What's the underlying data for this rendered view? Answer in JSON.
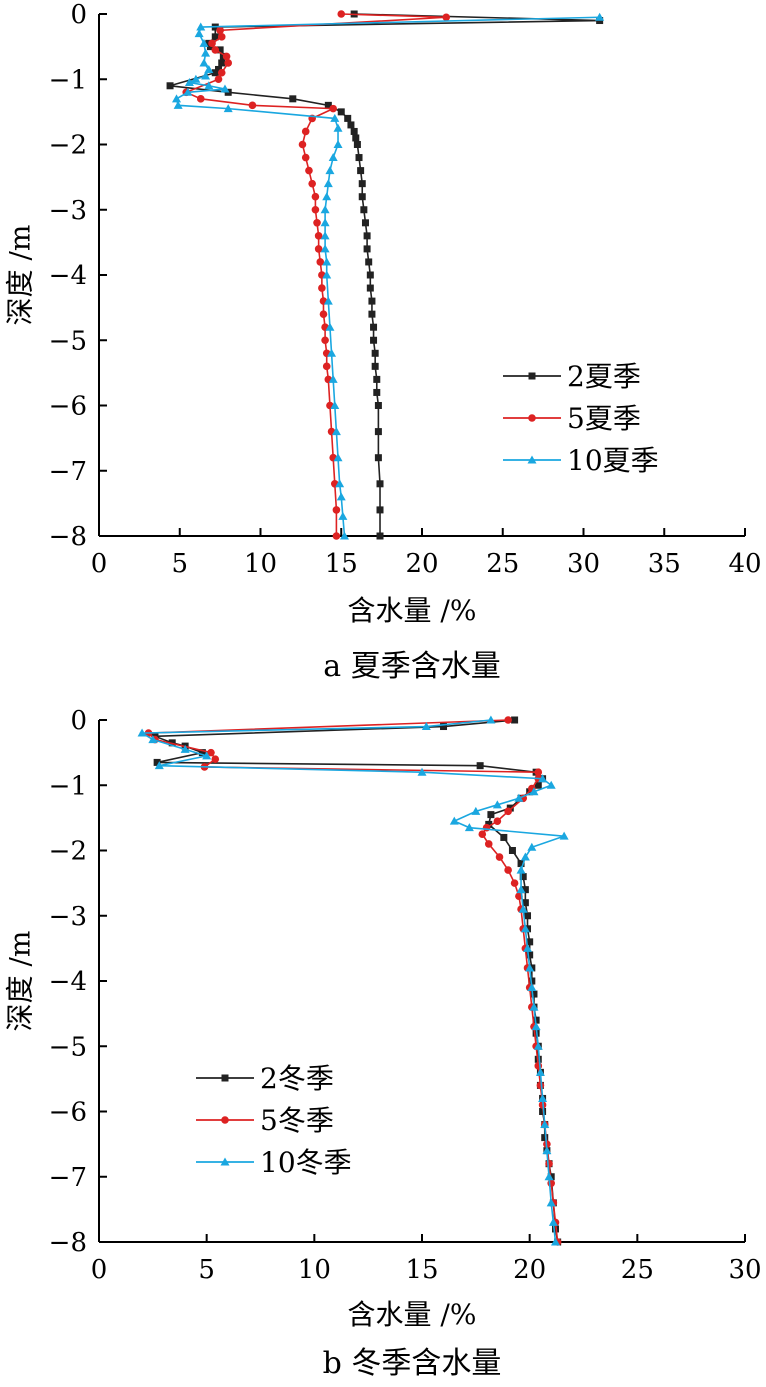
{
  "chart_data": [
    {
      "type": "line",
      "caption": "a 夏季含水量",
      "xlabel": "含水量 /%",
      "ylabel": "深度 /m",
      "xlim": [
        0,
        40
      ],
      "ylim": [
        -8,
        0
      ],
      "xticks": [
        0,
        5,
        10,
        15,
        20,
        25,
        30,
        35,
        40
      ],
      "yticks": [
        0,
        -1,
        -2,
        -3,
        -4,
        -5,
        -6,
        -7,
        -8
      ],
      "legend_position": "middle-right",
      "series": [
        {
          "name": "2夏季",
          "color": "#222222",
          "marker": "square",
          "x": [
            15.8,
            31.0,
            7.2,
            7.2,
            6.8,
            6.9,
            7.5,
            7.7,
            7.6,
            7.4,
            7.2,
            4.4,
            8.0,
            12.0,
            14.2,
            15.0,
            15.4,
            15.6,
            15.8,
            15.9,
            16.0,
            16.1,
            16.2,
            16.3,
            16.3,
            16.4,
            16.5,
            16.6,
            16.6,
            16.7,
            16.8,
            16.8,
            16.9,
            16.9,
            17.0,
            17.0,
            17.1,
            17.1,
            17.2,
            17.2,
            17.3,
            17.3,
            17.3,
            17.4,
            17.4,
            17.4
          ],
          "y": [
            0.0,
            -0.1,
            -0.2,
            -0.35,
            -0.45,
            -0.5,
            -0.55,
            -0.65,
            -0.75,
            -0.85,
            -0.9,
            -1.1,
            -1.2,
            -1.3,
            -1.4,
            -1.5,
            -1.6,
            -1.7,
            -1.8,
            -1.9,
            -2.0,
            -2.2,
            -2.4,
            -2.6,
            -2.8,
            -3.0,
            -3.2,
            -3.4,
            -3.6,
            -3.8,
            -4.0,
            -4.2,
            -4.4,
            -4.6,
            -4.8,
            -5.0,
            -5.2,
            -5.4,
            -5.6,
            -5.8,
            -6.0,
            -6.4,
            -6.8,
            -7.2,
            -7.6,
            -8.0
          ]
        },
        {
          "name": "5夏季",
          "color": "#dd2222",
          "marker": "circle",
          "x": [
            15.0,
            21.5,
            7.5,
            7.6,
            7.0,
            7.2,
            7.9,
            8.0,
            7.6,
            7.4,
            5.4,
            6.3,
            9.5,
            14.5,
            13.2,
            12.8,
            12.6,
            12.8,
            13.0,
            13.2,
            13.4,
            13.4,
            13.5,
            13.6,
            13.6,
            13.7,
            13.8,
            13.8,
            13.9,
            13.9,
            14.0,
            14.0,
            14.1,
            14.1,
            14.2,
            14.3,
            14.4,
            14.5,
            14.6,
            14.7,
            14.7
          ],
          "y": [
            0.0,
            -0.05,
            -0.25,
            -0.35,
            -0.45,
            -0.55,
            -0.65,
            -0.75,
            -0.9,
            -1.0,
            -1.2,
            -1.3,
            -1.4,
            -1.45,
            -1.6,
            -1.8,
            -2.0,
            -2.2,
            -2.4,
            -2.6,
            -2.8,
            -3.0,
            -3.2,
            -3.4,
            -3.6,
            -3.8,
            -4.0,
            -4.2,
            -4.4,
            -4.6,
            -4.8,
            -5.0,
            -5.2,
            -5.4,
            -5.6,
            -6.0,
            -6.4,
            -6.8,
            -7.2,
            -7.6,
            -8.0
          ]
        },
        {
          "name": "10夏季",
          "color": "#1aa7e0",
          "marker": "triangle",
          "x": [
            31.0,
            6.3,
            6.2,
            6.5,
            6.6,
            6.5,
            6.8,
            6.6,
            6.0,
            5.6,
            6.8,
            7.8,
            5.5,
            4.8,
            4.9,
            8.0,
            14.6,
            14.8,
            14.8,
            14.5,
            14.3,
            14.2,
            14.1,
            14.0,
            14.0,
            14.0,
            14.0,
            14.1,
            14.1,
            14.2,
            14.3,
            14.4,
            14.5,
            14.6,
            14.7,
            14.8,
            14.9,
            15.0,
            15.1,
            15.2
          ],
          "y": [
            -0.05,
            -0.2,
            -0.3,
            -0.45,
            -0.6,
            -0.75,
            -0.85,
            -0.95,
            -1.0,
            -1.05,
            -1.1,
            -1.15,
            -1.2,
            -1.3,
            -1.4,
            -1.45,
            -1.6,
            -1.75,
            -2.0,
            -2.2,
            -2.4,
            -2.6,
            -2.8,
            -3.0,
            -3.2,
            -3.4,
            -3.6,
            -3.8,
            -4.0,
            -4.4,
            -4.8,
            -5.2,
            -5.6,
            -6.0,
            -6.4,
            -6.8,
            -7.2,
            -7.4,
            -7.7,
            -8.0
          ]
        }
      ]
    },
    {
      "type": "line",
      "caption": "b 冬季含水量",
      "xlabel": "含水量 /%",
      "ylabel": "深度 /m",
      "xlim": [
        0,
        30
      ],
      "ylim": [
        -8,
        0
      ],
      "xticks": [
        0,
        5,
        10,
        15,
        20,
        25,
        30
      ],
      "yticks": [
        0,
        -1,
        -2,
        -3,
        -4,
        -5,
        -6,
        -7,
        -8
      ],
      "legend_position": "bottom-left",
      "series": [
        {
          "name": "2冬季",
          "color": "#222222",
          "marker": "square",
          "x": [
            19.3,
            16.0,
            2.6,
            3.4,
            4.0,
            4.8,
            2.7,
            17.7,
            20.3,
            20.6,
            20.4,
            20.0,
            19.6,
            19.1,
            18.2,
            18.1,
            18.8,
            19.2,
            19.6,
            19.7,
            19.8,
            19.8,
            19.9,
            19.9,
            20.0,
            20.0,
            20.1,
            20.1,
            20.2,
            20.2,
            20.3,
            20.3,
            20.4,
            20.4,
            20.5,
            20.5,
            20.6,
            20.6,
            20.7,
            20.7,
            20.8,
            20.9,
            21.0,
            21.1,
            21.2,
            21.3
          ],
          "y": [
            0.0,
            -0.1,
            -0.25,
            -0.35,
            -0.4,
            -0.5,
            -0.65,
            -0.7,
            -0.8,
            -0.9,
            -1.0,
            -1.1,
            -1.2,
            -1.35,
            -1.45,
            -1.6,
            -1.8,
            -2.0,
            -2.2,
            -2.4,
            -2.6,
            -2.8,
            -3.0,
            -3.2,
            -3.4,
            -3.6,
            -3.8,
            -4.0,
            -4.2,
            -4.4,
            -4.6,
            -4.8,
            -5.0,
            -5.2,
            -5.4,
            -5.6,
            -5.8,
            -6.0,
            -6.2,
            -6.4,
            -6.6,
            -6.8,
            -7.0,
            -7.4,
            -7.8,
            -8.0
          ]
        },
        {
          "name": "5冬季",
          "color": "#dd2222",
          "marker": "circle",
          "x": [
            19.0,
            2.3,
            2.6,
            5.2,
            5.4,
            4.9,
            20.4,
            20.4,
            20.1,
            19.7,
            19.0,
            18.5,
            18.0,
            17.8,
            18.1,
            18.6,
            19.0,
            19.3,
            19.5,
            19.6,
            19.7,
            19.8,
            19.9,
            20.0,
            20.1,
            20.2,
            20.3,
            20.4,
            20.5,
            20.6,
            20.7,
            20.8,
            20.9,
            21.0,
            21.1,
            21.2,
            21.3
          ],
          "y": [
            0.0,
            -0.2,
            -0.3,
            -0.5,
            -0.6,
            -0.72,
            -0.8,
            -0.9,
            -1.05,
            -1.2,
            -1.4,
            -1.55,
            -1.65,
            -1.75,
            -1.9,
            -2.1,
            -2.3,
            -2.5,
            -2.7,
            -2.9,
            -3.2,
            -3.5,
            -3.8,
            -4.1,
            -4.4,
            -4.7,
            -5.0,
            -5.3,
            -5.6,
            -5.9,
            -6.2,
            -6.5,
            -6.8,
            -7.1,
            -7.4,
            -7.7,
            -8.0
          ]
        },
        {
          "name": "10冬季",
          "color": "#1aa7e0",
          "marker": "triangle",
          "x": [
            18.2,
            15.2,
            2.0,
            2.5,
            4.0,
            5.0,
            2.8,
            15.0,
            20.6,
            21.0,
            20.2,
            19.5,
            18.5,
            17.5,
            16.5,
            17.2,
            21.6,
            20.1,
            19.8,
            19.6,
            19.6,
            19.7,
            19.8,
            19.9,
            20.0,
            20.1,
            20.2,
            20.3,
            20.4,
            20.5,
            20.6,
            20.7,
            20.8,
            20.9,
            21.0,
            21.1,
            21.2
          ],
          "y": [
            0.0,
            -0.1,
            -0.2,
            -0.3,
            -0.45,
            -0.55,
            -0.7,
            -0.8,
            -0.9,
            -1.0,
            -1.1,
            -1.2,
            -1.3,
            -1.4,
            -1.55,
            -1.65,
            -1.78,
            -1.95,
            -2.1,
            -2.3,
            -2.6,
            -2.9,
            -3.2,
            -3.5,
            -3.8,
            -4.1,
            -4.4,
            -4.7,
            -5.0,
            -5.4,
            -5.8,
            -6.2,
            -6.6,
            -7.0,
            -7.4,
            -7.7,
            -8.0
          ]
        }
      ]
    }
  ]
}
